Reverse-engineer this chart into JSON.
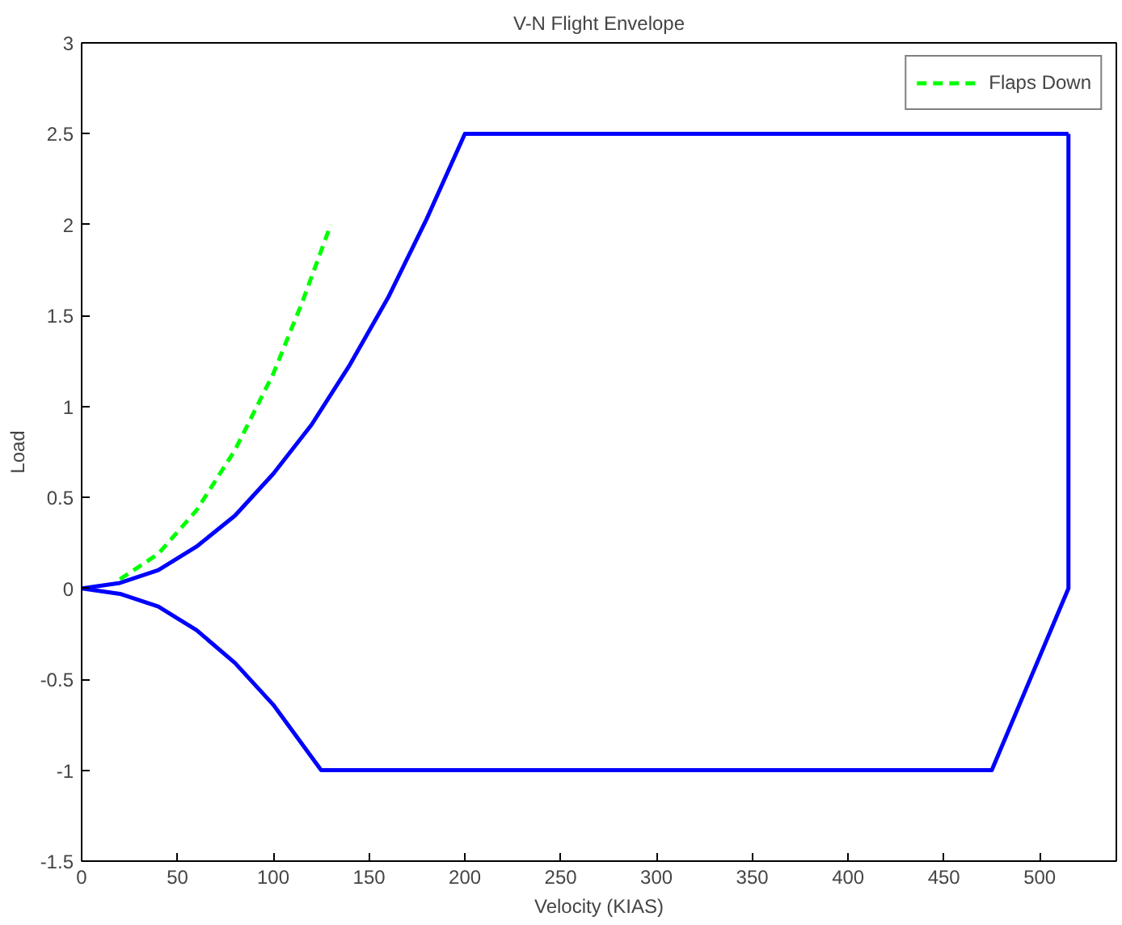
{
  "chart_data": {
    "type": "line",
    "title": "V-N Flight Envelope",
    "xlabel": "Velocity (KIAS)",
    "ylabel": "Load",
    "xlim": [
      0,
      540
    ],
    "ylim": [
      -1.5,
      3
    ],
    "xticks": [
      0,
      50,
      100,
      150,
      200,
      250,
      300,
      350,
      400,
      450,
      500
    ],
    "yticks": [
      -1.5,
      -1,
      -0.5,
      0,
      0.5,
      1,
      1.5,
      2,
      2.5,
      3
    ],
    "grid": false,
    "legend": "top right",
    "line_style": "solid",
    "marker": "none",
    "series": [
      {
        "color": "#0000ff",
        "x": [
          0,
          20,
          40,
          60,
          80,
          100,
          120,
          140,
          160,
          180,
          200,
          515,
          null,
          0,
          20,
          40,
          60,
          80,
          100,
          125,
          475,
          515,
          515
        ],
        "values": [
          0,
          0.03,
          0.1,
          0.23,
          0.4,
          0.63,
          0.9,
          1.23,
          1.6,
          2.03,
          2.5,
          2.5,
          null,
          0,
          -0.03,
          -0.1,
          -0.23,
          -0.41,
          -0.64,
          -1,
          -1,
          0,
          2.5
        ]
      },
      {
        "name": "Flaps Down",
        "color": "#00ff00",
        "line_style": "dashed",
        "x": [
          20,
          40,
          60,
          80,
          100,
          115,
          130
        ],
        "values": [
          0.05,
          0.19,
          0.43,
          0.76,
          1.18,
          1.57,
          2.0
        ]
      }
    ]
  }
}
